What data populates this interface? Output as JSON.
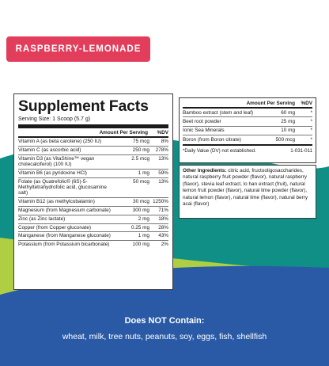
{
  "colors": {
    "flavor_badge": "#e23e5c",
    "teal": "#0f8f86",
    "navy": "#2a5aa6",
    "lime": "#aecf43"
  },
  "flavor": "RASPBERRY-LEMONADE",
  "facts": {
    "title": "Supplement Facts",
    "serving_size": "Serving Size: 1 Scoop (5.7 g)",
    "col_amount": "Amount Per Serving",
    "col_dv": "%DV",
    "rows": [
      {
        "name": "Vitamin A (as beta carotene) (250 IU)",
        "amount": "75 mcg",
        "dv": "8%"
      },
      {
        "name": "Vitamin C (as ascorbic acid)",
        "amount": "250 mg",
        "dv": "278%"
      },
      {
        "name": "Vitamin D3 (as VitaShine™ vegan cholecalciferol) (100 IU)",
        "amount": "2.5 mcg",
        "dv": "13%"
      },
      {
        "name": "Vitamin B6 (as pyridoxine HCl)",
        "amount": "1 mg",
        "dv": "59%"
      },
      {
        "name": "Folate (as Quatrefolic® (6S)-5-Methyltetrahydrofolic acid, glucosamine salt)",
        "amount": "50 mcg",
        "dv": "13%"
      },
      {
        "name": "Vitamin B12 (as methylcobalamin)",
        "amount": "30 mcg",
        "dv": "1250%"
      },
      {
        "name": "Magnesium (from Magnesium carbonate)",
        "amount": "300 mg",
        "dv": "71%"
      },
      {
        "name": "Zinc (as Zinc lactate)",
        "amount": "2 mg",
        "dv": "18%"
      },
      {
        "name": "Copper (from Copper gluconate)",
        "amount": "0.25 mg",
        "dv": "28%"
      },
      {
        "name": "Manganese (from Manganese gluconate)",
        "amount": "1 mg",
        "dv": "43%"
      },
      {
        "name": "Potassium (from Potassium bicarbonate)",
        "amount": "100 mg",
        "dv": "2%"
      }
    ]
  },
  "facts_cont": {
    "col_amount": "Amount Per Serving",
    "col_dv": "%DV",
    "rows": [
      {
        "name": "Bamboo extract (stem and leaf)",
        "amount": "60 mg",
        "dv": "*"
      },
      {
        "name": "Beet root powder",
        "amount": "25 mg",
        "dv": "*"
      },
      {
        "name": "Ionic Sea Minerals",
        "amount": "10 mg",
        "dv": "*"
      },
      {
        "name": "Boron (from Boron citrate)",
        "amount": "500 mcg",
        "dv": "*"
      }
    ],
    "footnote": "*Daily Value (DV) not established.",
    "code": "1-031-011"
  },
  "ingredients": {
    "label": "Other Ingredients:",
    "text": " citric acid, fructooligosaccharides, natural raspberry fruit powder (flavor), natural raspberry (flavor), stevia leaf extract, lo han extract (fruit), natural lemon fruit powder (flavor), natural lime powder (flavor), natural lemon (flavor), natural lime (flavor), natural berry acai (flavor)"
  },
  "allergens": {
    "heading": "Does NOT Contain:",
    "list": "wheat, milk, tree nuts, peanuts, soy, eggs, fish, shellfish"
  }
}
